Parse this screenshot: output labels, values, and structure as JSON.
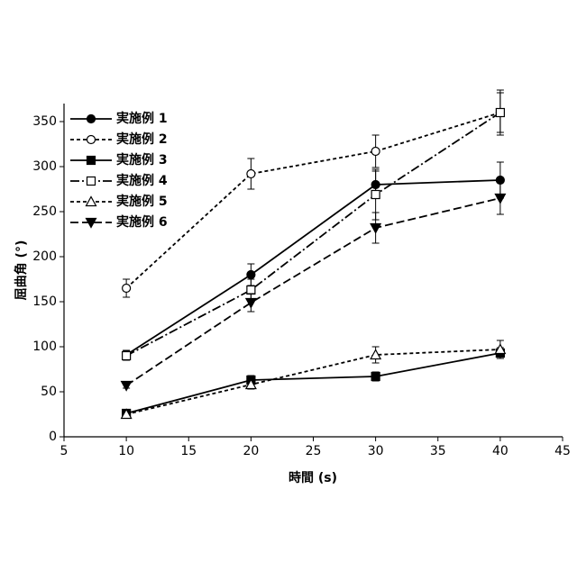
{
  "chart_data": {
    "type": "line",
    "x_label": "時間 (s)",
    "y_label": "屈曲角 (°)",
    "x": [
      10,
      20,
      30,
      40
    ],
    "xlim": [
      5,
      45
    ],
    "xticks": [
      5,
      10,
      15,
      20,
      25,
      30,
      35,
      40,
      45
    ],
    "ylim": [
      0,
      370
    ],
    "yticks": [
      0,
      50,
      100,
      150,
      200,
      250,
      300,
      350
    ],
    "grid": false,
    "legend": "upper-left",
    "series": [
      {
        "name": "実施例 1",
        "color": "#000000",
        "linestyle": "solid",
        "marker": "circle-filled",
        "values": [
          91,
          180,
          280,
          285
        ],
        "errors": [
          5,
          12,
          15,
          20
        ]
      },
      {
        "name": "実施例 2",
        "color": "#000000",
        "linestyle": "dashed",
        "marker": "circle-open",
        "values": [
          165,
          292,
          317,
          360
        ],
        "errors": [
          10,
          17,
          18,
          22
        ]
      },
      {
        "name": "実施例 3",
        "color": "#000000",
        "linestyle": "solid",
        "marker": "square-filled",
        "values": [
          26,
          63,
          67,
          93
        ],
        "errors": [
          3,
          5,
          5,
          6
        ]
      },
      {
        "name": "実施例 4",
        "color": "#000000",
        "linestyle": "dashdot",
        "marker": "square-open",
        "values": [
          90,
          163,
          269,
          360
        ],
        "errors": [
          5,
          12,
          28,
          25
        ]
      },
      {
        "name": "実施例 5",
        "color": "#000000",
        "linestyle": "dashed",
        "marker": "triangle-open",
        "values": [
          25,
          58,
          91,
          97
        ],
        "errors": [
          3,
          5,
          9,
          10
        ]
      },
      {
        "name": "実施例 6",
        "color": "#000000",
        "linestyle": "longdash",
        "marker": "triangle-down-filled",
        "values": [
          57,
          149,
          232,
          265
        ],
        "errors": [
          3,
          10,
          17,
          18
        ]
      }
    ]
  }
}
